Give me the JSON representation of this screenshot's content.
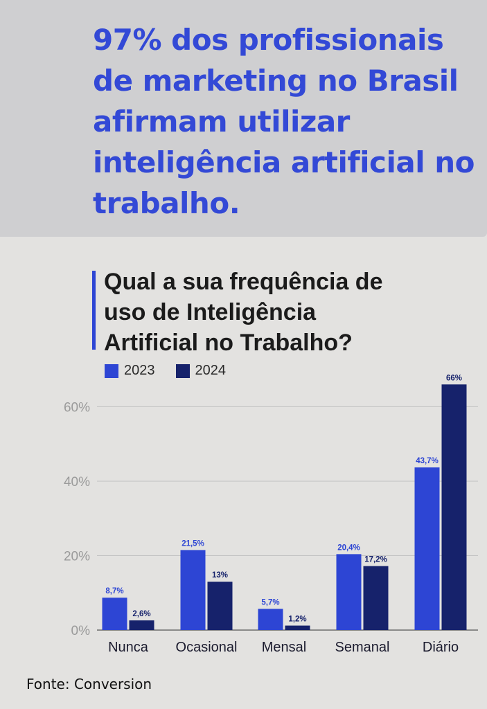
{
  "headline": "97% dos profissionais de marketing no Brasil afirmam utilizar inteligência artificial no trabalho.",
  "source": "Fonte: Conversion",
  "colors": {
    "headline": "#3349d6",
    "series_2023": "#2d45d4",
    "series_2024": "#16226b"
  },
  "chart_data": {
    "type": "bar",
    "title": "Qual a sua frequência de uso de Inteligência Artificial no Trabalho?",
    "categories": [
      "Nunca",
      "Ocasional",
      "Mensal",
      "Semanal",
      "Diário"
    ],
    "series": [
      {
        "name": "2023",
        "values": [
          8.7,
          21.5,
          5.7,
          20.4,
          43.7
        ],
        "labels": [
          "8,7%",
          "21,5%",
          "5,7%",
          "20,4%",
          "43,7%"
        ]
      },
      {
        "name": "2024",
        "values": [
          2.6,
          13,
          1.2,
          17.2,
          66
        ],
        "labels": [
          "2,6%",
          "13%",
          "1,2%",
          "17,2%",
          "66%"
        ]
      }
    ],
    "yticks": [
      0,
      20,
      40,
      60
    ],
    "ytick_labels": [
      "0%",
      "20%",
      "40%",
      "60%"
    ],
    "ylim": [
      0,
      66
    ],
    "grid": true,
    "legend": "top-left"
  }
}
